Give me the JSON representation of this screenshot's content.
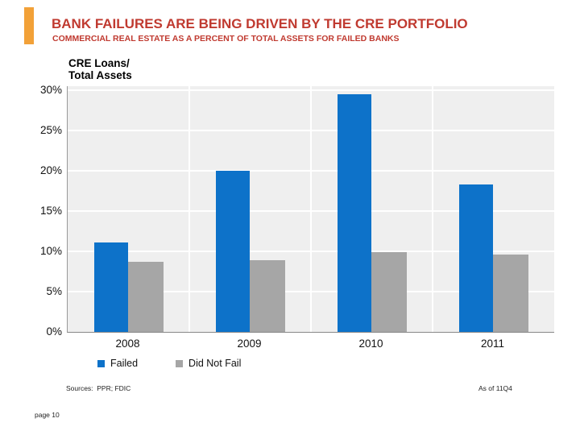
{
  "slide": {
    "title": "BANK FAILURES ARE BEING DRIVEN BY THE CRE PORTFOLIO",
    "subtitle": "COMMERCIAL REAL ESTATE AS A PERCENT OF TOTAL ASSETS FOR FAILED BANKS",
    "footer": {
      "sources": "Sources:  PPR; FDIC",
      "as_of": "As of 11Q4",
      "page": "page 10"
    }
  },
  "colors": {
    "title_red": "#C03A30",
    "accent_orange": "#F2A138",
    "plot_background": "#EFEFEF",
    "gridline_white": "#FFFFFF",
    "failed_blue": "#0D72C9",
    "did_not_fail_gray": "#A6A6A6"
  },
  "chart_data": {
    "type": "bar",
    "axis_title_lines": [
      "CRE Loans/",
      "Total Assets"
    ],
    "categories": [
      "2008",
      "2009",
      "2010",
      "2011"
    ],
    "series": [
      {
        "name": "Failed",
        "color": "#0D72C9",
        "values": [
          11.1,
          20.0,
          29.5,
          18.3
        ]
      },
      {
        "name": "Did Not Fail",
        "color": "#A6A6A6",
        "values": [
          8.7,
          8.9,
          9.9,
          9.6
        ]
      }
    ],
    "ylim": [
      0,
      30.5
    ],
    "ytick_values": [
      0,
      5,
      10,
      15,
      20,
      25,
      30
    ],
    "ytick_labels": [
      "0%",
      "5%",
      "10%",
      "15%",
      "20%",
      "25%",
      "30%"
    ],
    "grid": true,
    "legend_position": "bottom-left"
  }
}
